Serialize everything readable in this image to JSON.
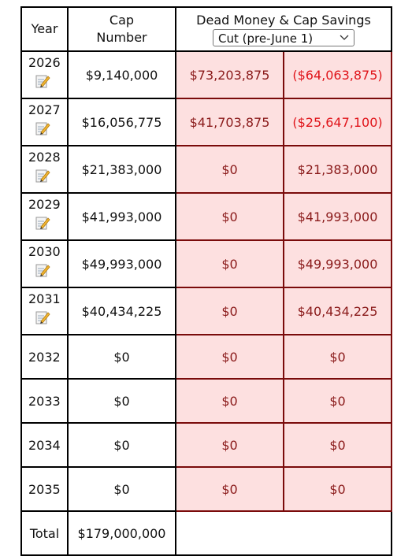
{
  "header": {
    "year": "Year",
    "cap_number": "Cap Number",
    "dead_money": "Dead Money & Cap Savings",
    "scenario": "Cut (pre-June 1)"
  },
  "table": {
    "rows": [
      [
        "2026",
        "$9,140,000",
        "$73,203,875",
        "($64,063,875)"
      ],
      [
        "2027",
        "$16,056,775",
        "$41,703,875",
        "($25,647,100)"
      ],
      [
        "2028",
        "$21,383,000",
        "$0",
        "$21,383,000"
      ],
      [
        "2029",
        "$41,993,000",
        "$0",
        "$41,993,000"
      ],
      [
        "2030",
        "$49,993,000",
        "$0",
        "$49,993,000"
      ],
      [
        "2031",
        "$40,434,225",
        "$0",
        "$40,434,225"
      ],
      [
        "2032",
        "$0",
        "$0",
        "$0"
      ],
      [
        "2033",
        "$0",
        "$0",
        "$0"
      ],
      [
        "2034",
        "$0",
        "$0",
        "$0"
      ],
      [
        "2035",
        "$0",
        "$0",
        "$0"
      ]
    ],
    "editable_rows": 6
  },
  "total": {
    "label": "Total",
    "value": "$179,000,000"
  }
}
